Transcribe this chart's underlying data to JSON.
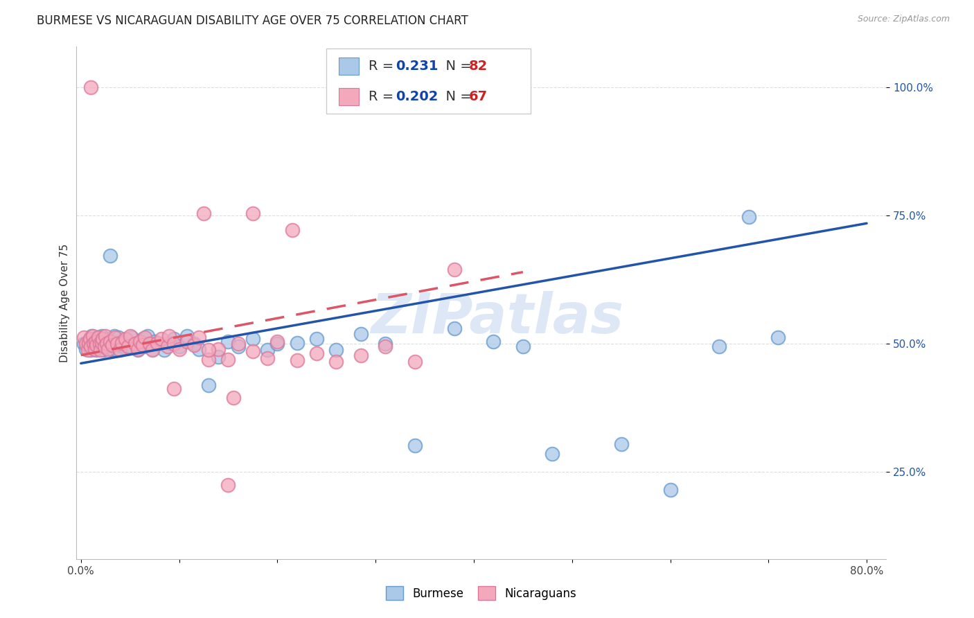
{
  "title": "BURMESE VS NICARAGUAN DISABILITY AGE OVER 75 CORRELATION CHART",
  "source": "Source: ZipAtlas.com",
  "ylabel": "Disability Age Over 75",
  "xlim": [
    -0.005,
    0.82
  ],
  "ylim": [
    0.08,
    1.08
  ],
  "xticks": [
    0.0,
    0.1,
    0.2,
    0.3,
    0.4,
    0.5,
    0.6,
    0.7,
    0.8
  ],
  "xticklabels": [
    "0.0%",
    "",
    "",
    "",
    "",
    "",
    "",
    "",
    "80.0%"
  ],
  "yticks": [
    0.25,
    0.5,
    0.75,
    1.0
  ],
  "yticklabels": [
    "25.0%",
    "50.0%",
    "75.0%",
    "100.0%"
  ],
  "burmese_color": "#AAC8E8",
  "burmese_edge": "#6699CC",
  "nicaraguan_color": "#F4A8BC",
  "nicaraguan_edge": "#DD7799",
  "burmese_line_color": "#2255AA",
  "nicaraguan_line_color": "#DD5566",
  "grid_color": "#DDDDDD",
  "background_color": "#FFFFFF",
  "watermark": "ZIPatlas",
  "watermark_color": "#C8D8F0",
  "legend_text_color": "#1144AA",
  "legend_N_color": "#CC2222",
  "title_fontsize": 12,
  "tick_fontsize": 11,
  "ytick_color": "#2255AA",
  "xtick_color": "#444444",
  "ylabel_color": "#333333",
  "burmese_trend_x": [
    0.0,
    0.8
  ],
  "burmese_trend_y": [
    0.462,
    0.735
  ],
  "nicaraguan_trend_x": [
    0.0,
    0.45
  ],
  "nicaraguan_trend_y": [
    0.478,
    0.64
  ],
  "burmese_x": [
    0.003,
    0.005,
    0.007,
    0.008,
    0.009,
    0.01,
    0.01,
    0.011,
    0.012,
    0.013,
    0.013,
    0.014,
    0.015,
    0.015,
    0.016,
    0.017,
    0.018,
    0.018,
    0.019,
    0.02,
    0.02,
    0.021,
    0.022,
    0.023,
    0.024,
    0.025,
    0.026,
    0.028,
    0.03,
    0.031,
    0.032,
    0.034,
    0.035,
    0.037,
    0.038,
    0.04,
    0.042,
    0.045,
    0.047,
    0.05,
    0.052,
    0.055,
    0.058,
    0.06,
    0.063,
    0.065,
    0.068,
    0.07,
    0.073,
    0.075,
    0.08,
    0.085,
    0.09,
    0.095,
    0.1,
    0.108,
    0.115,
    0.12,
    0.13,
    0.14,
    0.15,
    0.16,
    0.175,
    0.19,
    0.2,
    0.22,
    0.24,
    0.26,
    0.285,
    0.31,
    0.34,
    0.38,
    0.42,
    0.45,
    0.48,
    0.55,
    0.6,
    0.65,
    0.68,
    0.71,
    0.45,
    1.0
  ],
  "burmese_y": [
    0.5,
    0.49,
    0.505,
    0.495,
    0.51,
    0.5,
    0.488,
    0.515,
    0.498,
    0.505,
    0.492,
    0.51,
    0.495,
    0.502,
    0.488,
    0.512,
    0.498,
    0.505,
    0.492,
    0.508,
    0.495,
    0.515,
    0.5,
    0.488,
    0.502,
    0.51,
    0.495,
    0.508,
    0.672,
    0.505,
    0.49,
    0.515,
    0.5,
    0.488,
    0.512,
    0.498,
    0.505,
    0.492,
    0.508,
    0.495,
    0.512,
    0.5,
    0.488,
    0.502,
    0.51,
    0.495,
    0.515,
    0.5,
    0.49,
    0.505,
    0.5,
    0.488,
    0.502,
    0.51,
    0.495,
    0.515,
    0.5,
    0.49,
    0.42,
    0.475,
    0.505,
    0.495,
    0.51,
    0.488,
    0.5,
    0.502,
    0.51,
    0.488,
    0.52,
    0.5,
    0.302,
    0.53,
    0.505,
    0.495,
    0.285,
    0.305,
    0.215,
    0.495,
    0.748,
    0.512,
    1.0,
    1.0
  ],
  "nicaraguan_x": [
    0.003,
    0.005,
    0.007,
    0.008,
    0.009,
    0.01,
    0.012,
    0.013,
    0.014,
    0.015,
    0.016,
    0.018,
    0.019,
    0.02,
    0.021,
    0.022,
    0.024,
    0.025,
    0.026,
    0.028,
    0.03,
    0.032,
    0.035,
    0.037,
    0.04,
    0.042,
    0.045,
    0.048,
    0.05,
    0.055,
    0.058,
    0.06,
    0.063,
    0.065,
    0.07,
    0.073,
    0.078,
    0.082,
    0.088,
    0.09,
    0.095,
    0.1,
    0.108,
    0.115,
    0.12,
    0.13,
    0.14,
    0.15,
    0.16,
    0.175,
    0.19,
    0.2,
    0.22,
    0.24,
    0.26,
    0.285,
    0.31,
    0.34,
    0.38,
    0.13,
    0.095,
    0.215,
    0.155,
    0.175,
    0.125,
    0.01,
    0.15
  ],
  "nicaraguan_y": [
    0.512,
    0.5,
    0.488,
    0.502,
    0.51,
    0.495,
    0.515,
    0.5,
    0.49,
    0.505,
    0.498,
    0.512,
    0.5,
    0.488,
    0.502,
    0.51,
    0.495,
    0.515,
    0.5,
    0.49,
    0.505,
    0.498,
    0.512,
    0.5,
    0.488,
    0.502,
    0.51,
    0.495,
    0.515,
    0.5,
    0.49,
    0.505,
    0.498,
    0.512,
    0.5,
    0.488,
    0.502,
    0.51,
    0.495,
    0.515,
    0.5,
    0.49,
    0.505,
    0.498,
    0.512,
    0.47,
    0.49,
    0.47,
    0.5,
    0.485,
    0.472,
    0.505,
    0.468,
    0.482,
    0.465,
    0.478,
    0.495,
    0.465,
    0.645,
    0.488,
    0.412,
    0.722,
    0.395,
    0.755,
    0.755,
    1.0,
    0.225
  ]
}
